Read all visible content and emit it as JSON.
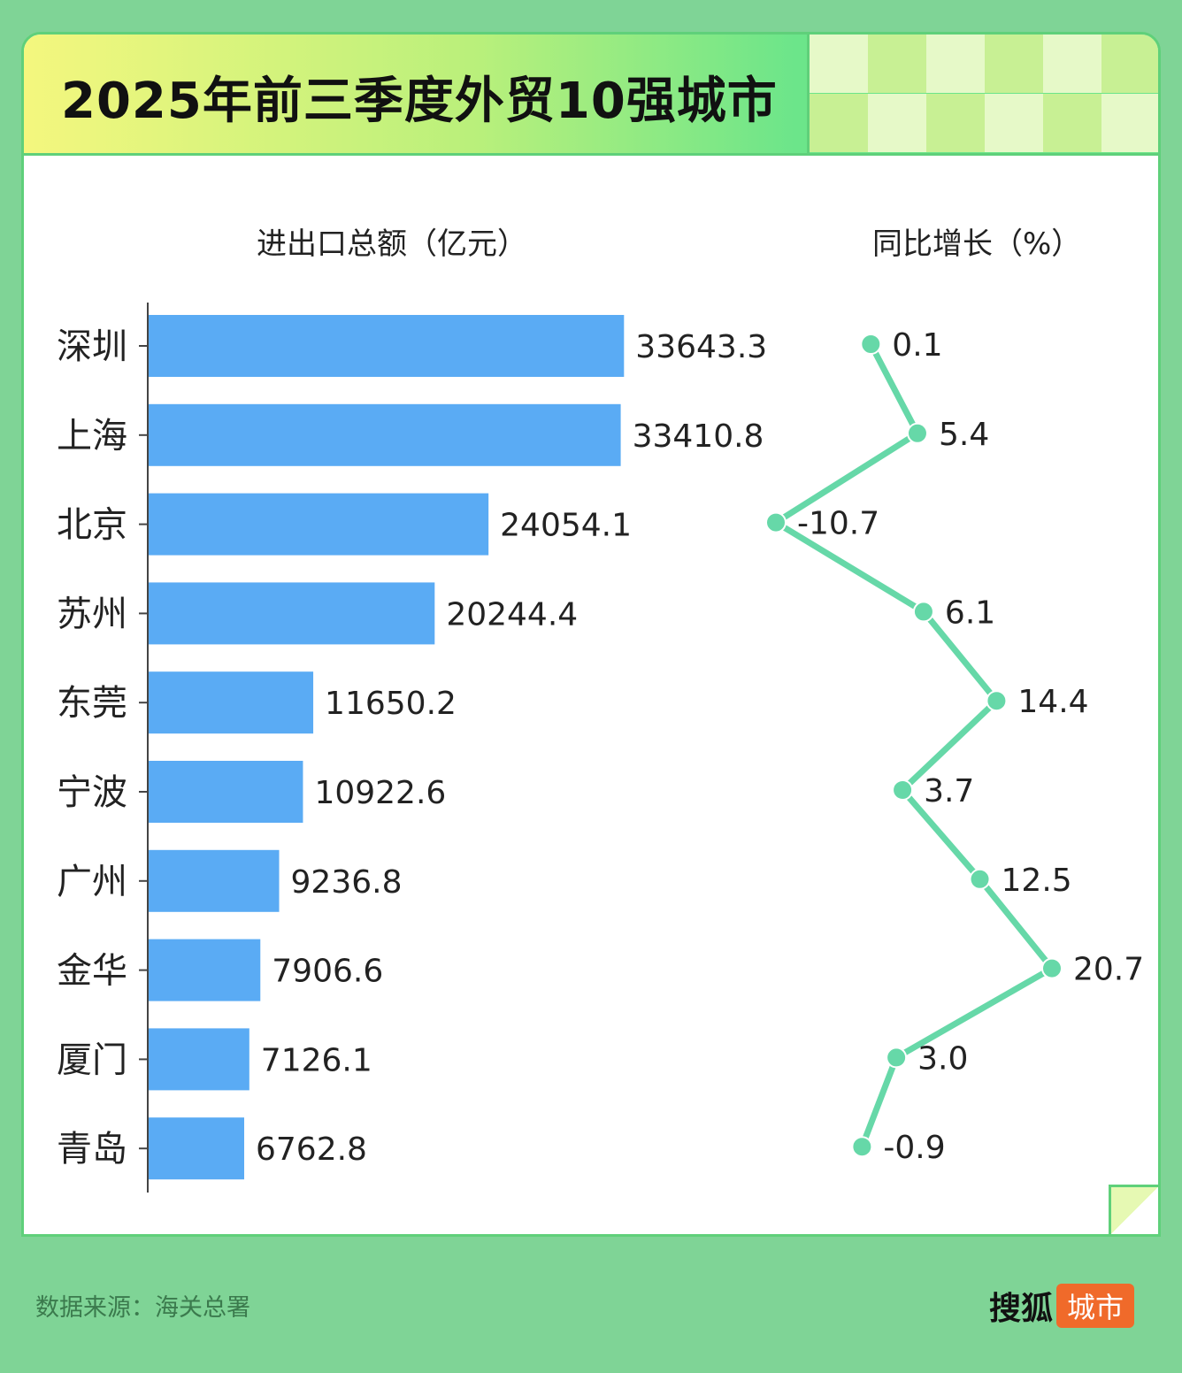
{
  "header": {
    "title": "2025年前三季度外贸10强城市"
  },
  "colors": {
    "background": "#7fd496",
    "bar": "#5aabf4",
    "line": "#66d8a8",
    "brand_tag": "#f06a2a"
  },
  "chart_data": [
    {
      "type": "bar",
      "orientation": "horizontal",
      "title": "进出口总额（亿元）",
      "categories": [
        "深圳",
        "上海",
        "北京",
        "苏州",
        "东莞",
        "宁波",
        "广州",
        "金华",
        "厦门",
        "青岛"
      ],
      "values": [
        33643.3,
        33410.8,
        24054.1,
        20244.4,
        11650.2,
        10922.6,
        9236.8,
        7906.6,
        7126.1,
        6762.8
      ],
      "value_labels": [
        "33643.3",
        "33410.8",
        "24054.1",
        "20244.4",
        "11650.2",
        "10922.6",
        "9236.8",
        "7906.6",
        "7126.1",
        "6762.8"
      ],
      "xlim": [
        0,
        34000
      ],
      "grid": false
    },
    {
      "type": "line",
      "orientation": "vertical",
      "title": "同比增长（%）",
      "categories": [
        "深圳",
        "上海",
        "北京",
        "苏州",
        "东莞",
        "宁波",
        "广州",
        "金华",
        "厦门",
        "青岛"
      ],
      "values": [
        0.1,
        5.4,
        -10.7,
        6.1,
        14.4,
        3.7,
        12.5,
        20.7,
        3.0,
        -0.9
      ],
      "value_labels": [
        "0.1",
        "5.4",
        "-10.7",
        "6.1",
        "14.4",
        "3.7",
        "12.5",
        "20.7",
        "3.0",
        "-0.9"
      ],
      "xlim": [
        -10.7,
        20.7
      ],
      "grid": false
    }
  ],
  "footer": {
    "source": "数据来源：海关总署",
    "brand_name": "搜狐",
    "brand_tag": "城市"
  }
}
